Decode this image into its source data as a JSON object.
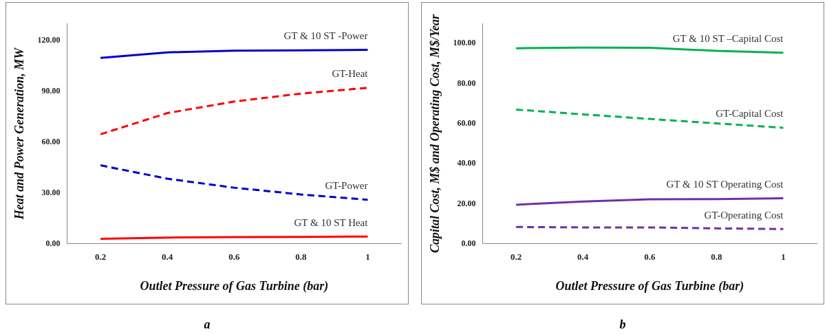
{
  "chart_data": [
    {
      "type": "line",
      "xlabel": "Outlet Pressure of Gas Turbine (bar)",
      "ylabel": "Heat and Power Generation, MW",
      "x": [
        0.2,
        0.4,
        0.6,
        0.8,
        1
      ],
      "xlim": [
        0.1,
        1.1
      ],
      "xticks": [
        0.2,
        0.4,
        0.6,
        0.8,
        1
      ],
      "ylim": [
        0,
        130
      ],
      "yticks": [
        {
          "value": 0,
          "label": "0.00"
        },
        {
          "value": 30,
          "label": "30.00"
        },
        {
          "value": 60,
          "label": "60.00"
        },
        {
          "value": 90,
          "label": "90.00"
        },
        {
          "value": 120,
          "label": "120.00"
        }
      ],
      "grid": false,
      "legend": false,
      "marker": "none",
      "annotations": [
        "a"
      ],
      "series": [
        {
          "name": "GT & 10 ST -Power",
          "color": "#0000cc",
          "line_style": "solid",
          "values": [
            109.6,
            112.9,
            113.9,
            114.1,
            114.4
          ]
        },
        {
          "name": "GT-Heat",
          "color": "#ff0000",
          "line_style": "dashed",
          "values": [
            64.6,
            77.1,
            83.9,
            88.6,
            92
          ]
        },
        {
          "name": "GT-Power",
          "color": "#0000cc",
          "line_style": "dashed",
          "values": [
            46.3,
            38.4,
            33.1,
            29.1,
            26
          ]
        },
        {
          "name": "GT & 10 ST Heat",
          "color": "#ff0000",
          "line_style": "solid",
          "values": [
            3,
            3.7,
            4,
            4.1,
            4.3
          ]
        }
      ]
    },
    {
      "type": "line",
      "xlabel": "Outlet Pressure of Gas Turbine (bar)",
      "ylabel": "Capital Cost, M$ and Operating Cost, M$/Year",
      "x": [
        0.2,
        0.4,
        0.6,
        0.8,
        1
      ],
      "xlim": [
        0.1,
        1.1
      ],
      "xticks": [
        0.2,
        0.4,
        0.6,
        0.8,
        1
      ],
      "ylim": [
        0,
        110
      ],
      "yticks": [
        {
          "value": 0,
          "label": "0.00"
        },
        {
          "value": 20,
          "label": "20.00"
        },
        {
          "value": 40,
          "label": "40.00"
        },
        {
          "value": 60,
          "label": "60.00"
        },
        {
          "value": 80,
          "label": "80.00"
        },
        {
          "value": 100,
          "label": "100.00"
        }
      ],
      "grid": false,
      "legend": false,
      "marker": "none",
      "annotations": [
        "b"
      ],
      "series": [
        {
          "name": "GT & 10 ST –Capital Cost",
          "color": "#00b050",
          "line_style": "solid",
          "values": [
            97.6,
            97.9,
            97.8,
            96.3,
            95.3
          ]
        },
        {
          "name": "GT-Capital Cost",
          "color": "#00b050",
          "line_style": "dashed",
          "values": [
            67,
            64.6,
            62.3,
            60.1,
            57.9
          ]
        },
        {
          "name": "GT & 10 ST Operating Cost",
          "color": "#7030a0",
          "line_style": "solid",
          "values": [
            19.5,
            21.1,
            22.2,
            22.3,
            22.7
          ]
        },
        {
          "name": "GT-Operating Cost",
          "color": "#7030a0",
          "line_style": "dashed",
          "values": [
            8.4,
            8.2,
            8.2,
            7.7,
            7.4
          ]
        }
      ]
    }
  ]
}
